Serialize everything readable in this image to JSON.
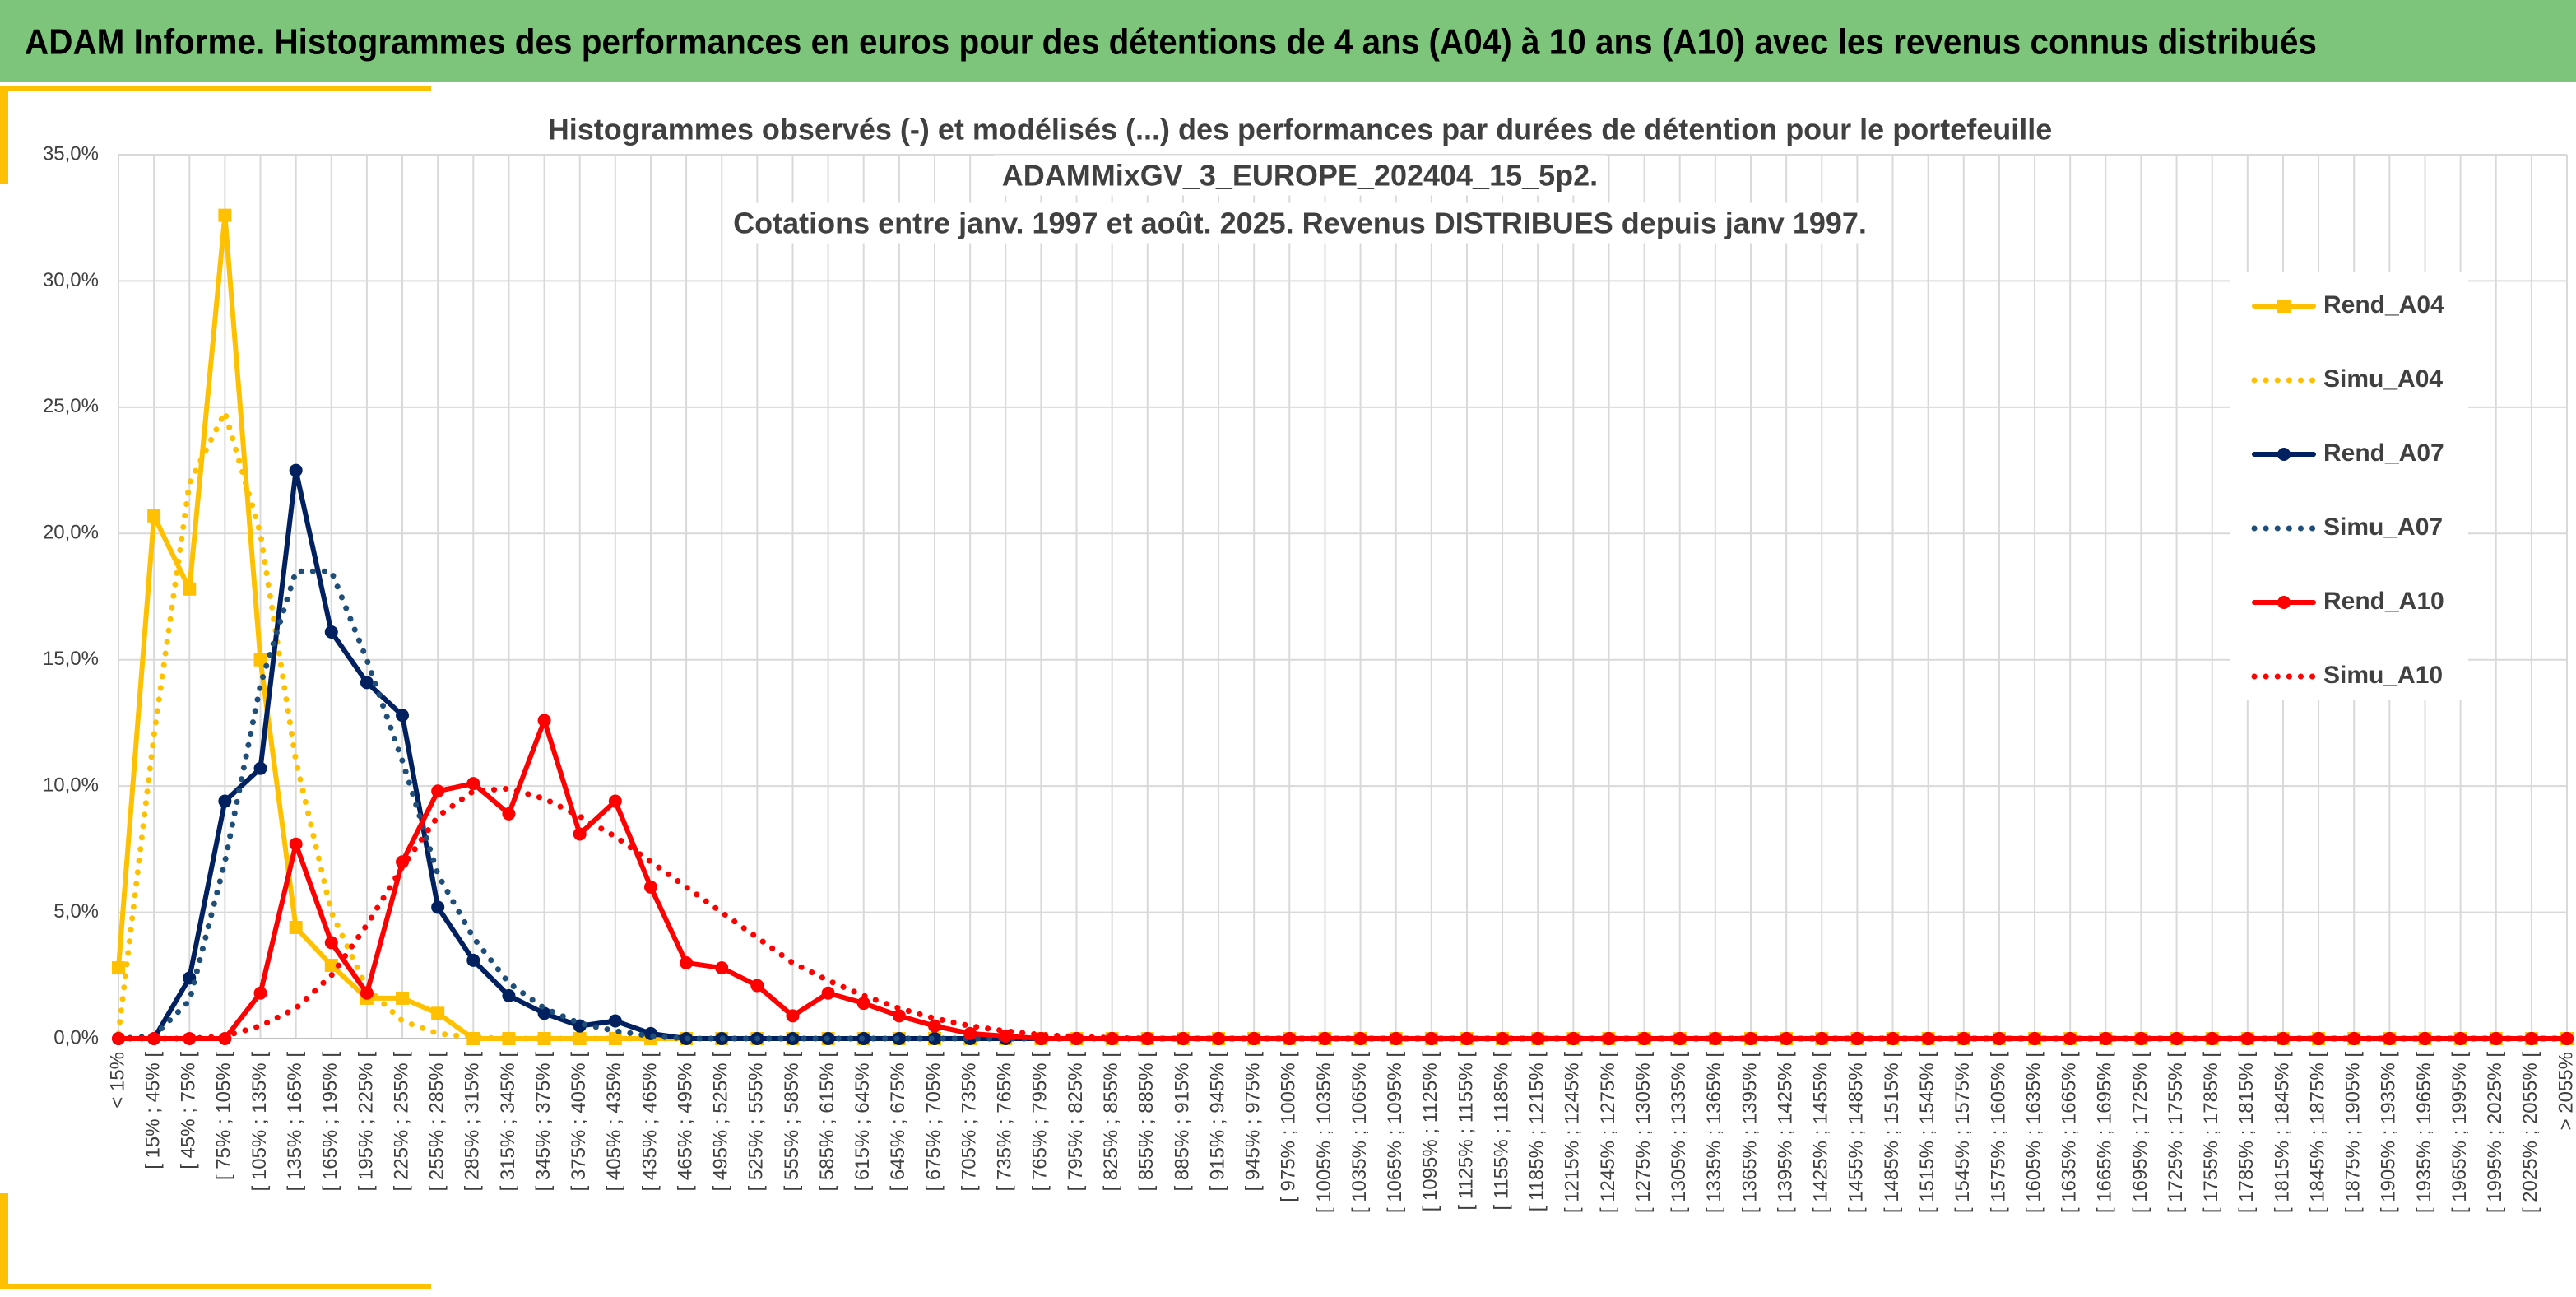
{
  "header": {
    "title": "ADAM Informe. Histogrammes des performances en euros pour des détentions de 4 ans (A04) à 10 ans (A10) avec les revenus connus distribués"
  },
  "chart_data": {
    "type": "line",
    "title": [
      "Histogrammes observés (-) et modélisés (...) des performances par durées de détention pour le portefeuille",
      "ADAMMixGV_3_EUROPE_202404_15_5p2.",
      "Cotations entre janv. 1997 et août. 2025. Revenus DISTRIBUES depuis janv 1997."
    ],
    "categories": [
      "< 15%",
      "[ 15% ; 45% [",
      "[ 45% ; 75% [",
      "[ 75% ; 105% [",
      "[ 105% ; 135% [",
      "[ 135% ; 165% [",
      "[ 165% ; 195% [",
      "[ 195% ; 225% [",
      "[ 225% ; 255% [",
      "[ 255% ; 285% [",
      "[ 285% ; 315% [",
      "[ 315% ; 345% [",
      "[ 345% ; 375% [",
      "[ 375% ; 405% [",
      "[ 405% ; 435% [",
      "[ 435% ; 465% [",
      "[ 465% ; 495% [",
      "[ 495% ; 525% [",
      "[ 525% ; 555% [",
      "[ 555% ; 585% [",
      "[ 585% ; 615% [",
      "[ 615% ; 645% [",
      "[ 645% ; 675% [",
      "[ 675% ; 705% [",
      "[ 705% ; 735% [",
      "[ 735% ; 765% [",
      "[ 765% ; 795% [",
      "[ 795% ; 825% [",
      "[ 825% ; 855% [",
      "[ 855% ; 885% [",
      "[ 885% ; 915% [",
      "[ 915% ; 945% [",
      "[ 945% ; 975% [",
      "[ 975% ; 1005% [",
      "[ 1005% ; 1035% [",
      "[ 1035% ; 1065% [",
      "[ 1065% ; 1095% [",
      "[ 1095% ; 1125% [",
      "[ 1125% ; 1155% [",
      "[ 1155% ; 1185% [",
      "[ 1185% ; 1215% [",
      "[ 1215% ; 1245% [",
      "[ 1245% ; 1275% [",
      "[ 1275% ; 1305% [",
      "[ 1305% ; 1335% [",
      "[ 1335% ; 1365% [",
      "[ 1365% ; 1395% [",
      "[ 1395% ; 1425% [",
      "[ 1425% ; 1455% [",
      "[ 1455% ; 1485% [",
      "[ 1485% ; 1515% [",
      "[ 1515% ; 1545% [",
      "[ 1545% ; 1575% [",
      "[ 1575% ; 1605% [",
      "[ 1605% ; 1635% [",
      "[ 1635% ; 1665% [",
      "[ 1665% ; 1695% [",
      "[ 1695% ; 1725% [",
      "[ 1725% ; 1755% [",
      "[ 1755% ; 1785% [",
      "[ 1785% ; 1815% [",
      "[ 1815% ; 1845% [",
      "[ 1845% ; 1875% [",
      "[ 1875% ; 1905% [",
      "[ 1905% ; 1935% [",
      "[ 1935% ; 1965% [",
      "[ 1965% ; 1995% [",
      "[ 1995% ; 2025% [",
      "[ 2025% ; 2055% [",
      "> 2055%"
    ],
    "series": [
      {
        "name": "Rend_A04",
        "color": "#ffc000",
        "dash": "solid",
        "marker": "square",
        "values": [
          2.8,
          20.7,
          17.8,
          32.6,
          15.0,
          4.4,
          2.9,
          1.6,
          1.6,
          1.0,
          0,
          0,
          0,
          0,
          0,
          0,
          0,
          0,
          0,
          0,
          0,
          0,
          0,
          0,
          0,
          0,
          0,
          0,
          0,
          0,
          0,
          0,
          0,
          0,
          0,
          0,
          0,
          0,
          0,
          0,
          0,
          0,
          0,
          0,
          0,
          0,
          0,
          0,
          0,
          0,
          0,
          0,
          0,
          0,
          0,
          0,
          0,
          0,
          0,
          0,
          0,
          0,
          0,
          0,
          0,
          0,
          0,
          0,
          0,
          0
        ]
      },
      {
        "name": "Simu_A04",
        "color": "#ffc000",
        "dash": "dotted",
        "marker": null,
        "values": [
          0.2,
          12,
          22,
          24.8,
          20,
          11,
          5,
          2,
          0.7,
          0.2,
          0.05,
          0,
          0,
          0,
          0,
          0,
          0,
          0,
          0,
          0,
          0,
          0,
          0,
          0,
          0,
          0,
          0,
          0,
          0,
          0,
          0,
          0,
          0,
          0,
          0,
          0,
          0,
          0,
          0,
          0,
          0,
          0,
          0,
          0,
          0,
          0,
          0,
          0,
          0,
          0,
          0,
          0,
          0,
          0,
          0,
          0,
          0,
          0,
          0,
          0,
          0,
          0,
          0,
          0,
          0,
          0,
          0,
          0,
          0,
          0
        ]
      },
      {
        "name": "Rend_A07",
        "color": "#002060",
        "dash": "solid",
        "marker": "circle",
        "values": [
          0,
          0,
          2.4,
          9.4,
          10.7,
          22.5,
          16.1,
          14.1,
          12.8,
          5.2,
          3.1,
          1.7,
          1.0,
          0.5,
          0.7,
          0.2,
          0,
          0,
          0,
          0,
          0,
          0,
          0,
          0,
          0,
          0,
          0,
          0,
          0,
          0,
          0,
          0,
          0,
          0,
          0,
          0,
          0,
          0,
          0,
          0,
          0,
          0,
          0,
          0,
          0,
          0,
          0,
          0,
          0,
          0,
          0,
          0,
          0,
          0,
          0,
          0,
          0,
          0,
          0,
          0,
          0,
          0,
          0,
          0,
          0,
          0,
          0,
          0,
          0,
          0
        ]
      },
      {
        "name": "Simu_A07",
        "color": "#1f4e79",
        "dash": "dotted",
        "marker": null,
        "values": [
          0,
          0.1,
          1.5,
          7,
          14,
          18.5,
          18.5,
          15,
          11,
          6.5,
          4,
          2.2,
          1.2,
          0.6,
          0.3,
          0.1,
          0,
          0,
          0,
          0,
          0,
          0,
          0,
          0,
          0,
          0,
          0,
          0,
          0,
          0,
          0,
          0,
          0,
          0,
          0,
          0,
          0,
          0,
          0,
          0,
          0,
          0,
          0,
          0,
          0,
          0,
          0,
          0,
          0,
          0,
          0,
          0,
          0,
          0,
          0,
          0,
          0,
          0,
          0,
          0,
          0,
          0,
          0,
          0,
          0,
          0,
          0,
          0,
          0,
          0
        ]
      },
      {
        "name": "Rend_A10",
        "color": "#ff0000",
        "dash": "solid",
        "marker": "circle",
        "values": [
          0,
          0,
          0,
          0,
          1.8,
          7.7,
          3.8,
          1.8,
          7.0,
          9.8,
          10.1,
          8.9,
          12.6,
          8.1,
          9.4,
          6.0,
          3.0,
          2.8,
          2.1,
          0.9,
          1.8,
          1.4,
          0.9,
          0.5,
          0.2,
          0.1,
          0,
          0,
          0,
          0,
          0,
          0,
          0,
          0,
          0,
          0,
          0,
          0,
          0,
          0,
          0,
          0,
          0,
          0,
          0,
          0,
          0,
          0,
          0,
          0,
          0,
          0,
          0,
          0,
          0,
          0,
          0,
          0,
          0,
          0,
          0,
          0,
          0,
          0,
          0,
          0,
          0,
          0,
          0,
          0
        ]
      },
      {
        "name": "Simu_A10",
        "color": "#ff0000",
        "dash": "dotted",
        "marker": null,
        "values": [
          0,
          0,
          0,
          0.1,
          0.5,
          1.2,
          2.5,
          4.5,
          6.8,
          8.8,
          9.8,
          9.9,
          9.5,
          8.8,
          8,
          7,
          6,
          5,
          4,
          3,
          2.3,
          1.7,
          1.2,
          0.8,
          0.5,
          0.3,
          0.15,
          0.08,
          0.03,
          0,
          0,
          0,
          0,
          0,
          0,
          0,
          0,
          0,
          0,
          0,
          0,
          0,
          0,
          0,
          0,
          0,
          0,
          0,
          0,
          0,
          0,
          0,
          0,
          0,
          0,
          0,
          0,
          0,
          0,
          0,
          0,
          0,
          0,
          0,
          0,
          0,
          0,
          0,
          0,
          0
        ]
      }
    ],
    "ylim": [
      0,
      35
    ],
    "yticks": [
      {
        "value": 0,
        "label": "0,0%"
      },
      {
        "value": 5,
        "label": "5,0%"
      },
      {
        "value": 10,
        "label": "10,0%"
      },
      {
        "value": 15,
        "label": "15,0%"
      },
      {
        "value": 20,
        "label": "20,0%"
      },
      {
        "value": 25,
        "label": "25,0%"
      },
      {
        "value": 30,
        "label": "30,0%"
      },
      {
        "value": 35,
        "label": "35,0%"
      }
    ],
    "grid": true,
    "legend": "right"
  }
}
